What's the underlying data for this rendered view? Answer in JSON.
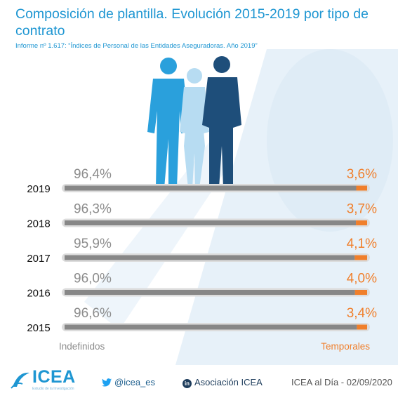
{
  "header": {
    "title": "Composición de plantilla. Evolución 2015-2019 por tipo de contrato",
    "subtitle": "Informe nº 1.617: “Índices de Personal de las Entidades Aseguradoras. Año 2019”"
  },
  "colors": {
    "brand": "#1e96d2",
    "indefinidos": "#878787",
    "temporales": "#f07f2b",
    "track": "#dcdcdc",
    "value_left": "#8c8c8c",
    "value_right": "#f07f2b"
  },
  "chart_data": {
    "type": "bar",
    "orientation": "horizontal",
    "stacked": true,
    "categories": [
      "2019",
      "2018",
      "2017",
      "2016",
      "2015"
    ],
    "series": [
      {
        "name": "Indefinidos",
        "values": [
          96.4,
          96.3,
          95.9,
          96.0,
          96.6
        ],
        "labels": [
          "96,4%",
          "96,3%",
          "95,9%",
          "96,0%",
          "96,6%"
        ]
      },
      {
        "name": "Temporales",
        "values": [
          3.6,
          3.7,
          4.1,
          4.0,
          3.4
        ],
        "labels": [
          "3,6%",
          "3,7%",
          "4,1%",
          "4,0%",
          "3,4%"
        ]
      }
    ],
    "xlim": [
      0,
      100
    ],
    "legend": "bottom"
  },
  "footer": {
    "logo_text": "ICEA",
    "logo_tagline": "Estudio de la Investigación",
    "twitter": "@icea_es",
    "linkedin_badge": "in",
    "linkedin": "Asociación ICEA",
    "date": "ICEA al Día - 02/09/2020"
  }
}
